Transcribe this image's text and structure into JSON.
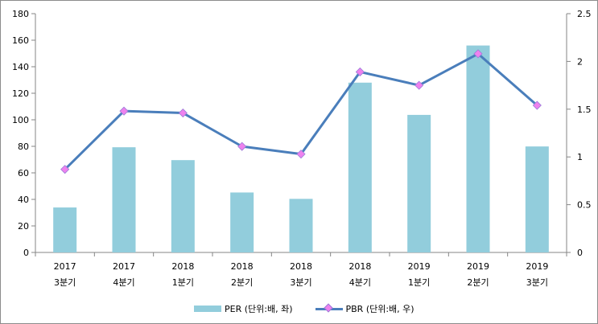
{
  "chart_data": {
    "type": "bar+line",
    "categories": [
      [
        "2017",
        "3분기"
      ],
      [
        "2017",
        "4분기"
      ],
      [
        "2018",
        "1분기"
      ],
      [
        "2018",
        "2분기"
      ],
      [
        "2018",
        "3분기"
      ],
      [
        "2018",
        "4분기"
      ],
      [
        "2019",
        "1분기"
      ],
      [
        "2019",
        "2분기"
      ],
      [
        "2019",
        "3분기"
      ]
    ],
    "series": [
      {
        "name": "PER (단위:배, 좌)",
        "type": "bar",
        "axis": "left",
        "color": "#92cddc",
        "values": [
          33.9,
          79.3,
          69.6,
          45.2,
          40.4,
          128.0,
          103.7,
          156.0,
          79.9
        ]
      },
      {
        "name": "PBR (단위:배, 우)",
        "type": "line",
        "axis": "right",
        "color": "#4a7ebb",
        "marker_color": "#ee82ee",
        "values": [
          0.87,
          1.48,
          1.46,
          1.11,
          1.03,
          1.89,
          1.75,
          2.08,
          1.54
        ]
      }
    ],
    "y_left": {
      "range": [
        0,
        180
      ],
      "ticks": [
        "0",
        "20",
        "40",
        "60",
        "80",
        "100",
        "120",
        "140",
        "160",
        "180"
      ]
    },
    "y_right": {
      "range": [
        0,
        2.5
      ],
      "ticks": [
        "0",
        "0.5",
        "1",
        "1.5",
        "2",
        "2.5"
      ]
    },
    "grid": false,
    "legend": "bottom"
  }
}
